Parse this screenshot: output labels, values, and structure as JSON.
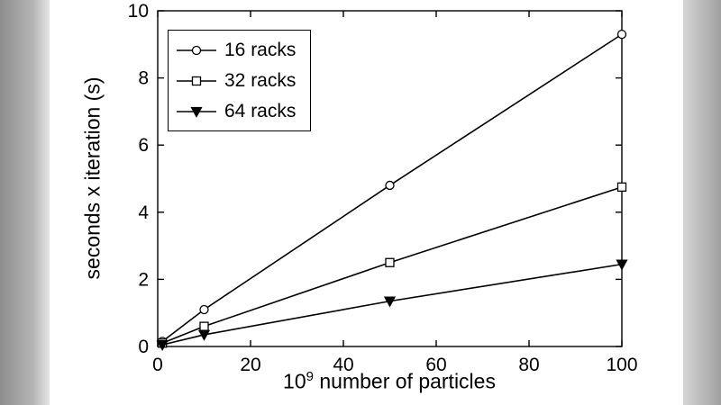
{
  "chart_data": {
    "type": "line",
    "title": "",
    "xlabel": "10^9 number of particles",
    "xlabel_prefix": "10",
    "xlabel_sup": "9",
    "xlabel_suffix": " number of particles",
    "ylabel": "seconds x iteration (s)",
    "xlim": [
      0,
      100
    ],
    "ylim": [
      0,
      10
    ],
    "xticks": [
      0,
      20,
      40,
      60,
      80,
      100
    ],
    "yticks": [
      0,
      2,
      4,
      6,
      8,
      10
    ],
    "grid": false,
    "legend_position": "upper-left",
    "line_color": "#000000",
    "background": "#ffffff",
    "series": [
      {
        "name": "16 racks",
        "marker": "circle",
        "marker_filled": false,
        "x": [
          1,
          10,
          50,
          100
        ],
        "values": [
          0.15,
          1.1,
          4.8,
          9.3
        ]
      },
      {
        "name": "32 racks",
        "marker": "square",
        "marker_filled": false,
        "x": [
          1,
          10,
          50,
          100
        ],
        "values": [
          0.1,
          0.6,
          2.5,
          4.75
        ]
      },
      {
        "name": "64 racks",
        "marker": "triangle-down",
        "marker_filled": true,
        "x": [
          1,
          10,
          50,
          100
        ],
        "values": [
          0.05,
          0.35,
          1.35,
          2.45
        ]
      }
    ]
  }
}
